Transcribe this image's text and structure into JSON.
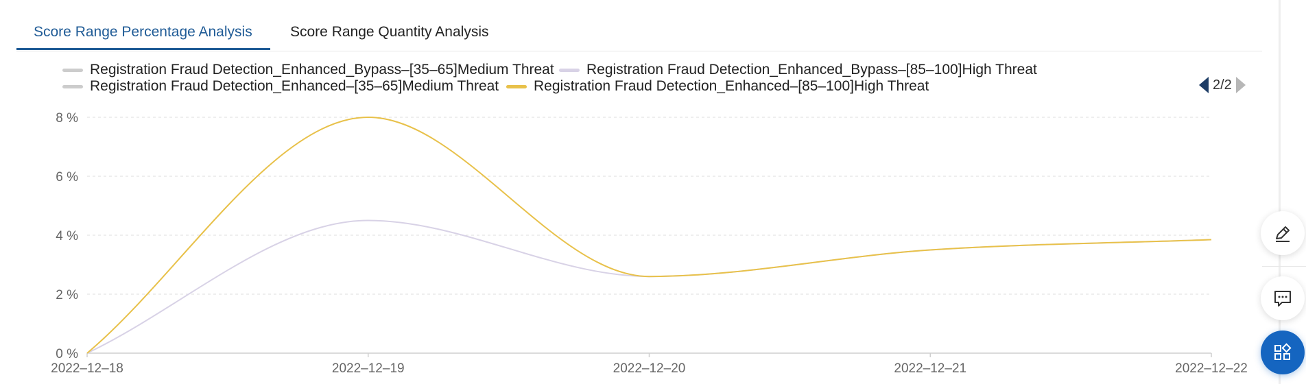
{
  "tabs": [
    {
      "label": "Score Range Percentage Analysis",
      "active": true
    },
    {
      "label": "Score Range Quantity Analysis",
      "active": false
    }
  ],
  "legend": {
    "items": [
      {
        "label": "Registration Fraud Detection_Enhanced_Bypass–[35–65]Medium Threat",
        "color": "#cccccc"
      },
      {
        "label": "Registration Fraud Detection_Enhanced_Bypass–[85–100]High Threat",
        "color": "#d8d2e6"
      },
      {
        "label": "Registration Fraud Detection_Enhanced–[35–65]Medium Threat",
        "color": "#cccccc"
      },
      {
        "label": "Registration Fraud Detection_Enhanced–[85–100]High Threat",
        "color": "#e8c14a"
      }
    ],
    "pager": "2/2"
  },
  "chart_data": {
    "type": "line",
    "smooth": true,
    "x": [
      "2022–12–18",
      "2022–12–19",
      "2022–12–20",
      "2022–12–21",
      "2022–12–22"
    ],
    "y_ticks": [
      "0 %",
      "2 %",
      "4 %",
      "6 %",
      "8 %"
    ],
    "ylim": [
      0,
      8
    ],
    "grid": true,
    "legend_position": "top",
    "series": [
      {
        "name": "Registration Fraud Detection_Enhanced_Bypass–[85–100]High Threat",
        "color": "#d8d2e6",
        "values": [
          0,
          4.5,
          2.6,
          3.5,
          3.85
        ]
      },
      {
        "name": "Registration Fraud Detection_Enhanced–[85–100]High Threat",
        "color": "#e8c14a",
        "values": [
          0,
          8,
          2.6,
          3.5,
          3.85
        ]
      }
    ]
  },
  "colors": {
    "accent": "#1f5b96",
    "fab_primary": "#1565c0"
  },
  "toolbar": {
    "icons": [
      "edit-icon",
      "comment-icon",
      "apps-icon"
    ]
  }
}
